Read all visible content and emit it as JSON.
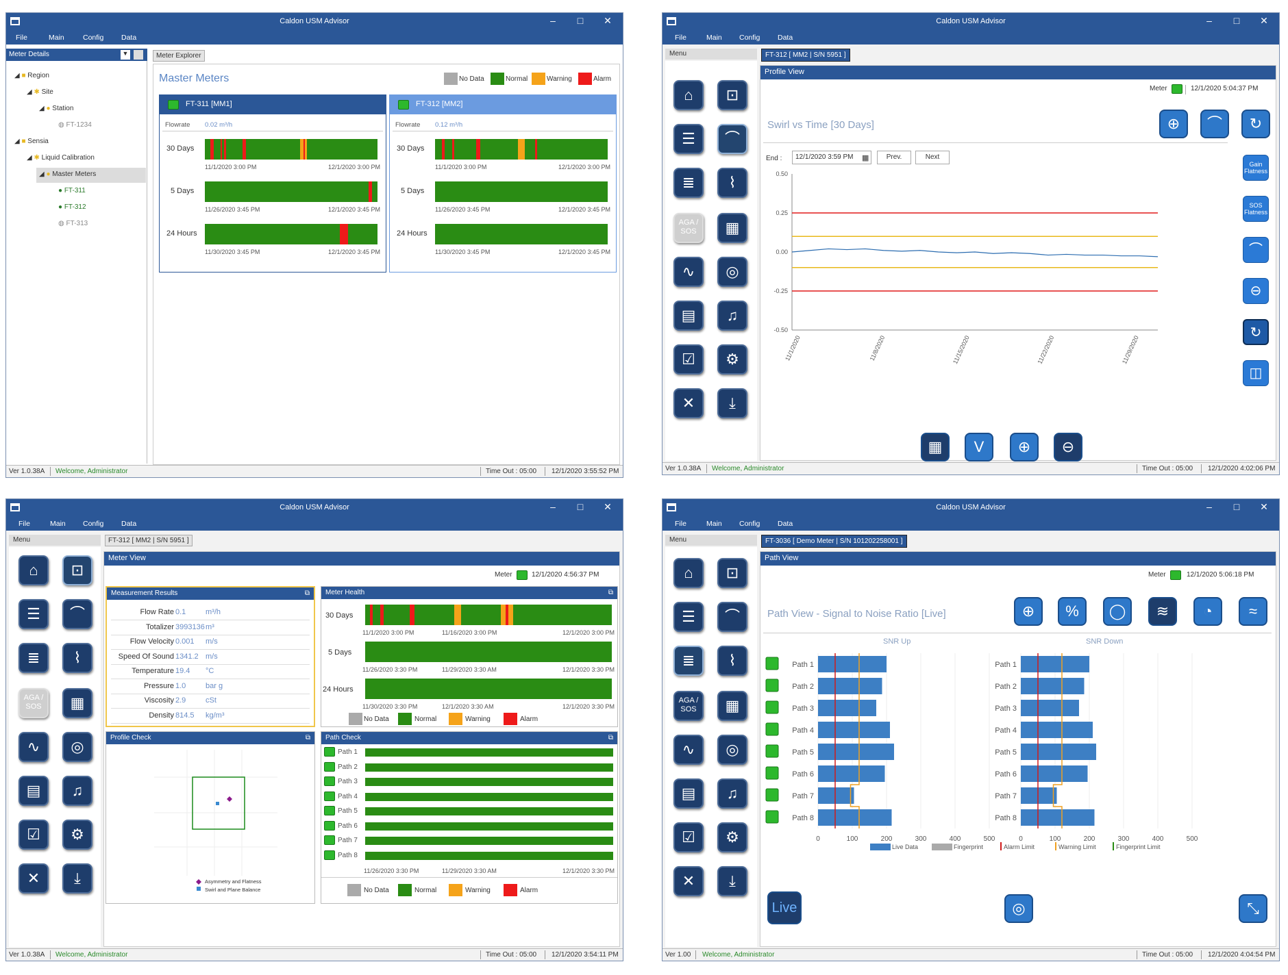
{
  "app_title": "Caldon USM Advisor",
  "menu": [
    "File",
    "Main",
    "Config",
    "Data"
  ],
  "win_controls": {
    "min": "–",
    "max": "□",
    "close": "✕"
  },
  "status": {
    "timeout": "Time Out : 05:00",
    "welcome": "Welcome, Administrator",
    "ver1": "Ver 1.0.38A",
    "ver4": "Ver 1.00",
    "time1": "12/1/2020 3:55:52 PM",
    "time2": "12/1/2020 4:02:06 PM",
    "time3": "12/1/2020 3:54:11 PM",
    "time4": "12/1/2020 4:04:54 PM"
  },
  "legend": {
    "nodata": "No Data",
    "normal": "Normal",
    "warning": "Warning",
    "alarm": "Alarm"
  },
  "w1": {
    "left_header": "Meter Details",
    "tab": "Meter Explorer",
    "title": "Master Meters",
    "tree": [
      "Region",
      "Site",
      "Station",
      "FT-1234",
      "Sensia",
      "Liquid Calibration",
      "Master Meters",
      "FT-311",
      "FT-312",
      "FT-313"
    ],
    "cards": [
      {
        "name": "FT-311 [MM1]",
        "flow_label": "Flowrate",
        "flow": "0.02 m³/h",
        "rows": [
          {
            "label": "30 Days",
            "start": "11/1/2020 3:00 PM",
            "end": "12/1/2020 3:00 PM"
          },
          {
            "label": "5 Days",
            "start": "11/26/2020 3:45 PM",
            "end": "12/1/2020 3:45 PM"
          },
          {
            "label": "24 Hours",
            "start": "11/30/2020 3:45 PM",
            "end": "12/1/2020 3:45 PM"
          }
        ]
      },
      {
        "name": "FT-312 [MM2]",
        "flow_label": "Flowrate",
        "flow": "0.12 m³/h",
        "rows": [
          {
            "label": "30 Days",
            "start": "11/1/2020 3:00 PM",
            "end": "12/1/2020 3:00 PM"
          },
          {
            "label": "5 Days",
            "start": "11/26/2020 3:45 PM",
            "end": "12/1/2020 3:45 PM"
          },
          {
            "label": "24 Hours",
            "start": "11/30/2020 3:45 PM",
            "end": "12/1/2020 3:45 PM"
          }
        ]
      }
    ]
  },
  "w2": {
    "menu_label": "Menu",
    "tab": "FT-312 [ MM2 | S/N 5951 ]",
    "panel": "Profile View",
    "meter_label": "Meter",
    "meter_time": "12/1/2020 5:04:37 PM",
    "chart_title": "Swirl vs Time [30 Days]",
    "end_label": "End :",
    "end_value": "12/1/2020 3:59 PM",
    "prev": "Prev.",
    "next": "Next",
    "side_btns": [
      "Gain Flatness",
      "SOS Flatness"
    ]
  },
  "w3": {
    "menu_label": "Menu",
    "tab": "FT-312 [ MM2 | S/N 5951 ]",
    "panel": "Meter View",
    "meter_label": "Meter",
    "meter_time": "12/1/2020 4:56:37 PM",
    "meas_title": "Measurement Results",
    "health_title": "Meter Health",
    "profile_title": "Profile Check",
    "path_title": "Path Check",
    "measurements": [
      {
        "label": "Flow Rate",
        "value": "0.1",
        "unit": "m³/h"
      },
      {
        "label": "Totalizer",
        "value": "3993136",
        "unit": "m³"
      },
      {
        "label": "Flow Velocity",
        "value": "0.001",
        "unit": "m/s"
      },
      {
        "label": "Speed Of Sound",
        "value": "1341.2",
        "unit": "m/s"
      },
      {
        "label": "Temperature",
        "value": "19.4",
        "unit": "°C"
      },
      {
        "label": "Pressure",
        "value": "1.0",
        "unit": "bar g"
      },
      {
        "label": "Viscosity",
        "value": "2.9",
        "unit": "cSt"
      },
      {
        "label": "Density",
        "value": "814.5",
        "unit": "kg/m³"
      }
    ],
    "health_rows": [
      {
        "label": "30 Days",
        "t": [
          "11/1/2020 3:00 PM",
          "11/16/2020 3:00 PM",
          "12/1/2020 3:00 PM"
        ]
      },
      {
        "label": "5 Days",
        "t": [
          "11/26/2020 3:30 PM",
          "11/29/2020 3:30 AM",
          "12/1/2020 3:30 PM"
        ]
      },
      {
        "label": "24 Hours",
        "t": [
          "11/30/2020 3:30 PM",
          "12/1/2020 3:30 AM",
          "12/1/2020 3:30 PM"
        ]
      }
    ],
    "path_labels": [
      "Path 1",
      "Path 2",
      "Path 3",
      "Path 4",
      "Path 5",
      "Path 6",
      "Path 7",
      "Path 8"
    ],
    "path_times": [
      "11/26/2020 3:30 PM",
      "11/29/2020 3:30 AM",
      "12/1/2020 3:30 PM"
    ],
    "profile_legend": [
      "Asymmetry and Flatness",
      "Swirl and Plane Balance"
    ]
  },
  "w4": {
    "menu_label": "Menu",
    "tab": "FT-3036 [ Demo Meter | S/N 101202258001 ]",
    "panel": "Path View",
    "meter_label": "Meter",
    "meter_time": "12/1/2020 5:06:18 PM",
    "chart_title": "Path View - Signal to Noise Ratio [Live]",
    "live": "Live",
    "snr_up": "SNR Up",
    "snr_down": "SNR Down",
    "legend": [
      "Live Data",
      "Fingerprint",
      "Alarm Limit",
      "Warning Limit",
      "Fingerprint Limit"
    ]
  },
  "chart_data": [
    {
      "type": "line",
      "title": "Swirl vs Time [30 Days]",
      "xlabel": "",
      "ylabel": "",
      "x_ticks": [
        "11/1/2020",
        "11/8/2020",
        "11/15/2020",
        "11/22/2020",
        "11/29/2020"
      ],
      "y_ticks": [
        "0.50",
        "0.25",
        "0.00",
        "-0.25",
        "-0.50"
      ],
      "ylim": [
        -0.5,
        0.5
      ],
      "alarm_limits": [
        0.25,
        -0.25
      ],
      "warning_limits": [
        0.1,
        -0.1
      ],
      "series": [
        {
          "values": [
            0,
            0.01,
            0.02,
            0.015,
            0.02,
            0.01,
            0.005,
            0.01,
            0,
            -0.005,
            0,
            -0.01,
            -0.005,
            -0.01,
            -0.02,
            -0.015,
            -0.02,
            -0.02,
            -0.025,
            -0.025,
            -0.03
          ]
        }
      ]
    },
    {
      "type": "bar",
      "title": "SNR Up",
      "categories": [
        "Path 1",
        "Path 2",
        "Path 3",
        "Path 4",
        "Path 5",
        "Path 6",
        "Path 7",
        "Path 8"
      ],
      "values": [
        200,
        187,
        170,
        210,
        222,
        195,
        105,
        215
      ],
      "xlim": [
        0,
        500
      ],
      "x_ticks": [
        "0",
        "100",
        "200",
        "300",
        "400",
        "500"
      ]
    },
    {
      "type": "bar",
      "title": "SNR Down",
      "categories": [
        "Path 1",
        "Path 2",
        "Path 3",
        "Path 4",
        "Path 5",
        "Path 6",
        "Path 7",
        "Path 8"
      ],
      "values": [
        200,
        185,
        170,
        210,
        220,
        195,
        105,
        215
      ],
      "xlim": [
        0,
        500
      ],
      "x_ticks": [
        "0",
        "100",
        "200",
        "300",
        "400",
        "500"
      ]
    }
  ]
}
